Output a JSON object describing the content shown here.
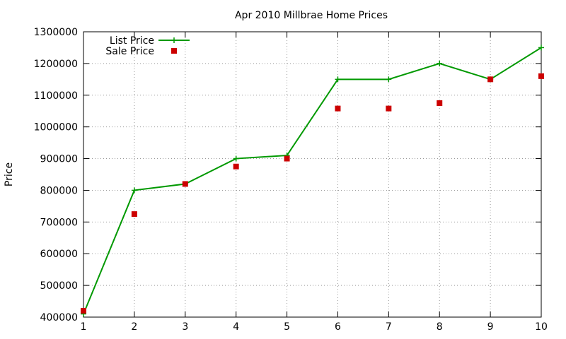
{
  "chart_data": {
    "type": "line",
    "title": "Apr 2010 Millbrae Home Prices",
    "xlabel": "",
    "ylabel": "Price",
    "x": [
      1,
      2,
      3,
      4,
      5,
      6,
      7,
      8,
      9,
      10
    ],
    "xlim": [
      1,
      10
    ],
    "ylim": [
      400000,
      1300000
    ],
    "x_ticks": [
      1,
      2,
      3,
      4,
      5,
      6,
      7,
      8,
      9,
      10
    ],
    "y_ticks": [
      400000,
      500000,
      600000,
      700000,
      800000,
      900000,
      1000000,
      1100000,
      1200000,
      1300000
    ],
    "grid": true,
    "legend_position": "top-left",
    "series": [
      {
        "name": "List Price",
        "style": "line+cross",
        "color": "#009900",
        "values": [
          410000,
          800000,
          820000,
          900000,
          910000,
          1150000,
          1150000,
          1200000,
          1150000,
          1250000
        ]
      },
      {
        "name": "Sale Price",
        "style": "square-points",
        "color": "#cc0000",
        "values": [
          420000,
          725000,
          820000,
          875000,
          900000,
          1058000,
          1058000,
          1075000,
          1150000,
          1160000
        ]
      }
    ]
  }
}
